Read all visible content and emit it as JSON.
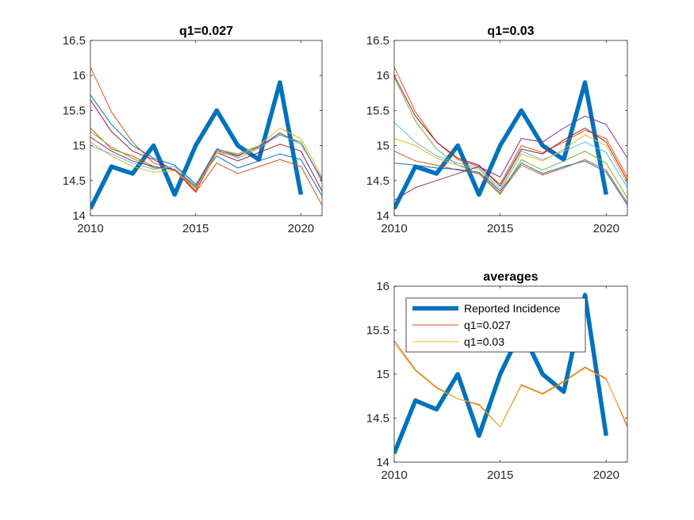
{
  "chart_data": [
    {
      "type": "line",
      "title": "q1=0.027",
      "xlim": [
        2010,
        2021
      ],
      "ylim": [
        14,
        16.5
      ],
      "xticks": [
        2010,
        2015,
        2020
      ],
      "yticks": [
        14,
        14.5,
        15,
        15.5,
        16,
        16.5
      ],
      "reported": {
        "x": [
          2010,
          2011,
          2012,
          2013,
          2014,
          2015,
          2016,
          2017,
          2018,
          2019,
          2020
        ],
        "y": [
          14.1,
          14.7,
          14.6,
          15.0,
          14.3,
          15.0,
          15.5,
          15.0,
          14.8,
          15.9,
          14.3
        ],
        "color": "#0072BD"
      },
      "series": [
        {
          "color": "#D95319",
          "x": [
            2010,
            2011,
            2012,
            2013,
            2014,
            2015,
            2016,
            2017,
            2018,
            2019,
            2020,
            2021
          ],
          "y": [
            16.12,
            15.48,
            15.05,
            14.75,
            14.65,
            14.33,
            14.75,
            14.6,
            14.7,
            14.8,
            14.7,
            14.15
          ]
        },
        {
          "color": "#0072BD",
          "x": [
            2010,
            2011,
            2012,
            2013,
            2014,
            2015,
            2016,
            2017,
            2018,
            2019,
            2020,
            2021
          ],
          "y": [
            15.72,
            15.3,
            15.0,
            14.82,
            14.72,
            14.45,
            14.85,
            14.68,
            14.78,
            14.88,
            14.8,
            14.28
          ]
        },
        {
          "color": "#A2142F",
          "x": [
            2010,
            2011,
            2012,
            2013,
            2014,
            2015,
            2016,
            2017,
            2018,
            2019,
            2020,
            2021
          ],
          "y": [
            15.65,
            15.2,
            14.92,
            14.8,
            14.65,
            14.35,
            14.9,
            14.78,
            14.9,
            15.02,
            14.92,
            14.35
          ]
        },
        {
          "color": "#D95319",
          "x": [
            2010,
            2011,
            2012,
            2013,
            2014,
            2015,
            2016,
            2017,
            2018,
            2019,
            2020,
            2021
          ],
          "y": [
            15.25,
            14.95,
            14.85,
            14.7,
            14.65,
            14.38,
            14.92,
            14.85,
            14.98,
            15.15,
            15.05,
            14.48
          ]
        },
        {
          "color": "#77AC30",
          "x": [
            2010,
            2011,
            2012,
            2013,
            2014,
            2015,
            2016,
            2017,
            2018,
            2019,
            2020,
            2021
          ],
          "y": [
            15.2,
            14.98,
            14.82,
            14.68,
            14.66,
            14.4,
            14.95,
            14.88,
            15.0,
            15.15,
            15.05,
            14.5
          ]
        },
        {
          "color": "#7E2F8E",
          "x": [
            2010,
            2011,
            2012,
            2013,
            2014,
            2015,
            2016,
            2017,
            2018,
            2019,
            2020,
            2021
          ],
          "y": [
            15.12,
            14.92,
            14.78,
            14.7,
            14.66,
            14.42,
            14.94,
            14.86,
            14.98,
            15.18,
            15.02,
            14.52
          ]
        },
        {
          "color": "#EDB120",
          "x": [
            2010,
            2011,
            2012,
            2013,
            2014,
            2015,
            2016,
            2017,
            2018,
            2019,
            2020,
            2021
          ],
          "y": [
            15.05,
            14.85,
            14.7,
            14.62,
            14.64,
            14.38,
            14.9,
            14.84,
            15.0,
            15.25,
            15.1,
            14.55
          ]
        },
        {
          "color": "#4DBEEE",
          "x": [
            2010,
            2011,
            2012,
            2013,
            2014,
            2015,
            2016,
            2017,
            2018,
            2019,
            2020,
            2021
          ],
          "y": [
            15.0,
            14.88,
            14.75,
            14.66,
            14.7,
            14.44,
            14.96,
            14.82,
            14.96,
            15.16,
            15.02,
            14.5
          ]
        }
      ]
    },
    {
      "type": "line",
      "title": "q1=0.03",
      "xlim": [
        2010,
        2021
      ],
      "ylim": [
        14,
        16.5
      ],
      "xticks": [
        2010,
        2015,
        2020
      ],
      "yticks": [
        14,
        14.5,
        15,
        15.5,
        16,
        16.5
      ],
      "reported": {
        "x": [
          2010,
          2011,
          2012,
          2013,
          2014,
          2015,
          2016,
          2017,
          2018,
          2019,
          2020
        ],
        "y": [
          14.1,
          14.7,
          14.6,
          15.0,
          14.3,
          15.0,
          15.5,
          15.0,
          14.8,
          15.9,
          14.3
        ],
        "color": "#0072BD"
      },
      "series": [
        {
          "color": "#D95319",
          "x": [
            2010,
            2011,
            2012,
            2013,
            2014,
            2015,
            2016,
            2017,
            2018,
            2019,
            2020,
            2021
          ],
          "y": [
            16.12,
            15.48,
            15.05,
            14.8,
            14.7,
            14.45,
            15.0,
            14.9,
            15.05,
            15.22,
            15.1,
            14.55
          ]
        },
        {
          "color": "#A2142F",
          "x": [
            2010,
            2011,
            2012,
            2013,
            2014,
            2015,
            2016,
            2017,
            2018,
            2019,
            2020,
            2021
          ],
          "y": [
            16.0,
            15.42,
            15.05,
            14.82,
            14.72,
            14.42,
            14.95,
            14.88,
            15.08,
            15.25,
            15.05,
            14.5
          ]
        },
        {
          "color": "#77AC30",
          "x": [
            2010,
            2011,
            2012,
            2013,
            2014,
            2015,
            2016,
            2017,
            2018,
            2019,
            2020,
            2021
          ],
          "y": [
            15.97,
            15.35,
            14.95,
            14.72,
            14.6,
            14.3,
            14.8,
            14.65,
            14.78,
            14.92,
            14.75,
            14.25
          ]
        },
        {
          "color": "#4DBEEE",
          "x": [
            2010,
            2011,
            2012,
            2013,
            2014,
            2015,
            2016,
            2017,
            2018,
            2019,
            2020,
            2021
          ],
          "y": [
            15.33,
            15.05,
            14.85,
            14.75,
            14.68,
            14.38,
            14.92,
            14.8,
            14.92,
            15.05,
            14.9,
            14.4
          ]
        },
        {
          "color": "#EDB120",
          "x": [
            2010,
            2011,
            2012,
            2013,
            2014,
            2015,
            2016,
            2017,
            2018,
            2019,
            2020,
            2021
          ],
          "y": [
            15.1,
            15.0,
            14.82,
            14.72,
            14.66,
            14.35,
            14.88,
            14.78,
            14.95,
            15.15,
            15.0,
            14.45
          ]
        },
        {
          "color": "#D95319",
          "x": [
            2010,
            2011,
            2012,
            2013,
            2014,
            2015,
            2016,
            2017,
            2018,
            2019,
            2020,
            2021
          ],
          "y": [
            14.92,
            14.78,
            14.72,
            14.65,
            14.6,
            14.32,
            14.72,
            14.58,
            14.68,
            14.8,
            14.65,
            14.18
          ]
        },
        {
          "color": "#0072BD",
          "x": [
            2010,
            2011,
            2012,
            2013,
            2014,
            2015,
            2016,
            2017,
            2018,
            2019,
            2020,
            2021
          ],
          "y": [
            14.75,
            14.72,
            14.68,
            14.66,
            14.62,
            14.35,
            14.75,
            14.6,
            14.7,
            14.78,
            14.62,
            14.15
          ]
        },
        {
          "color": "#7E2F8E",
          "x": [
            2010,
            2011,
            2012,
            2013,
            2014,
            2015,
            2016,
            2017,
            2018,
            2019,
            2020,
            2021
          ],
          "y": [
            14.22,
            14.4,
            14.5,
            14.6,
            14.7,
            14.55,
            15.1,
            15.05,
            15.25,
            15.42,
            15.3,
            14.82
          ]
        }
      ]
    },
    {
      "type": "line",
      "title": "averages",
      "xlim": [
        2010,
        2021
      ],
      "ylim": [
        14,
        16
      ],
      "xticks": [
        2010,
        2015,
        2020
      ],
      "yticks": [
        14,
        14.5,
        15,
        15.5,
        16
      ],
      "legend": {
        "position": "top-left",
        "entries": [
          "Reported Incidence",
          "q1=0.027",
          "q1=0.03"
        ]
      },
      "reported": {
        "name": "Reported Incidence",
        "x": [
          2010,
          2011,
          2012,
          2013,
          2014,
          2015,
          2016,
          2017,
          2018,
          2019,
          2020
        ],
        "y": [
          14.1,
          14.7,
          14.6,
          15.0,
          14.3,
          15.0,
          15.5,
          15.0,
          14.8,
          15.9,
          14.3
        ],
        "color": "#0072BD"
      },
      "series": [
        {
          "name": "q1=0.027",
          "color": "#D95319",
          "x": [
            2010,
            2011,
            2012,
            2013,
            2014,
            2015,
            2016,
            2017,
            2018,
            2019,
            2020,
            2021
          ],
          "y": [
            15.38,
            15.05,
            14.85,
            14.72,
            14.65,
            14.4,
            14.88,
            14.78,
            14.92,
            15.08,
            14.95,
            14.4
          ]
        },
        {
          "name": "q1=0.03",
          "color": "#EDB120",
          "x": [
            2010,
            2011,
            2012,
            2013,
            2014,
            2015,
            2016,
            2017,
            2018,
            2019,
            2020,
            2021
          ],
          "y": [
            15.35,
            15.04,
            14.84,
            14.72,
            14.66,
            14.4,
            14.87,
            14.77,
            14.91,
            15.07,
            14.94,
            14.42
          ]
        }
      ]
    }
  ]
}
